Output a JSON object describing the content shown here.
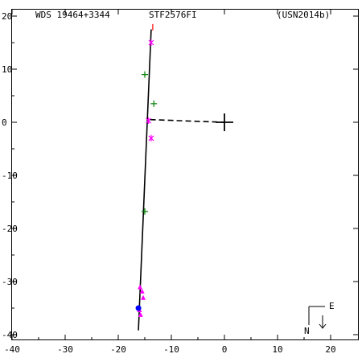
{
  "header": {
    "wds_id": "WDS 19464+3344",
    "discoverer": "STF2576FI",
    "reference": "(USN2014b)"
  },
  "compass": {
    "north": "N",
    "east": "E"
  },
  "colors": {
    "axis": "#000000",
    "orbit": "#000000",
    "star_marker": "#ff00ff",
    "plus_marker": "#008000",
    "triangle_marker": "#ff00ff",
    "dot_marker": "#0000ff",
    "primary": "#000000",
    "tick_red": "#ff0000"
  },
  "chart_data": {
    "type": "scatter",
    "xlim": [
      -40,
      25
    ],
    "ylim": [
      -40,
      22
    ],
    "x_ticks": [
      -40,
      -30,
      -20,
      -10,
      0,
      10,
      20
    ],
    "y_ticks": [
      20,
      10,
      0,
      -10,
      -20,
      -30,
      -40
    ],
    "orbit_line": [
      [
        -13.8,
        17.5
      ],
      [
        -16.2,
        -39.2
      ]
    ],
    "dashed_line": [
      [
        -14.0,
        0.5
      ],
      [
        0,
        0
      ]
    ],
    "primary_star": [
      0,
      0
    ],
    "star_points": [
      [
        -13.8,
        15.0
      ],
      [
        -14.3,
        0.3
      ],
      [
        -13.8,
        -3.0
      ]
    ],
    "plus_points": [
      [
        -15.0,
        9.0
      ],
      [
        -13.3,
        3.5
      ],
      [
        -15.0,
        -16.8
      ]
    ],
    "triangle_points": [
      [
        -15.9,
        -31.0
      ],
      [
        -15.5,
        -31.8
      ],
      [
        -15.3,
        -33.0
      ],
      [
        -16.0,
        -35.3
      ],
      [
        -15.8,
        -36.2
      ]
    ],
    "dot_points": [
      [
        -16.2,
        -35.0
      ]
    ],
    "red_tick": [
      [
        -13.5,
        17.3
      ],
      [
        -13.5,
        18.5
      ]
    ],
    "grid": false
  }
}
